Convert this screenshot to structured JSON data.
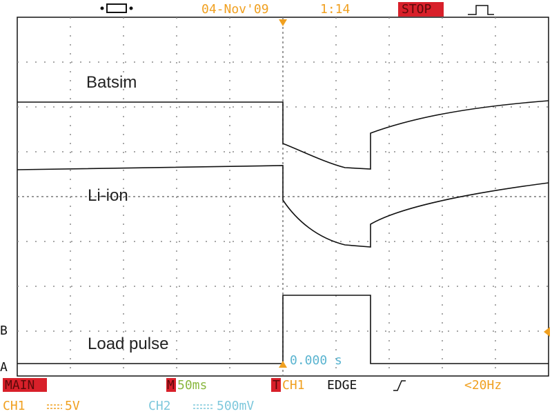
{
  "header": {
    "date": "04-Nov'09",
    "time": "1:14",
    "status": "STOP"
  },
  "traces": {
    "batsim": "Batsim",
    "li_ion": "Li-ion",
    "load": "Load pulse"
  },
  "cursor_time": "0.000 s",
  "markers": {
    "ch_a": "A",
    "ch_b": "B"
  },
  "footer": {
    "mode": "MAIN",
    "timebase_key": "M",
    "timebase": "50ms",
    "trigger_key": "T",
    "trigger_source": "CH1",
    "trigger_type": "EDGE",
    "trigger_freq": "<20Hz",
    "ch1_name": "CH1",
    "ch1_scale": "5V",
    "ch2_name": "CH2",
    "ch2_scale": "500mV"
  }
}
